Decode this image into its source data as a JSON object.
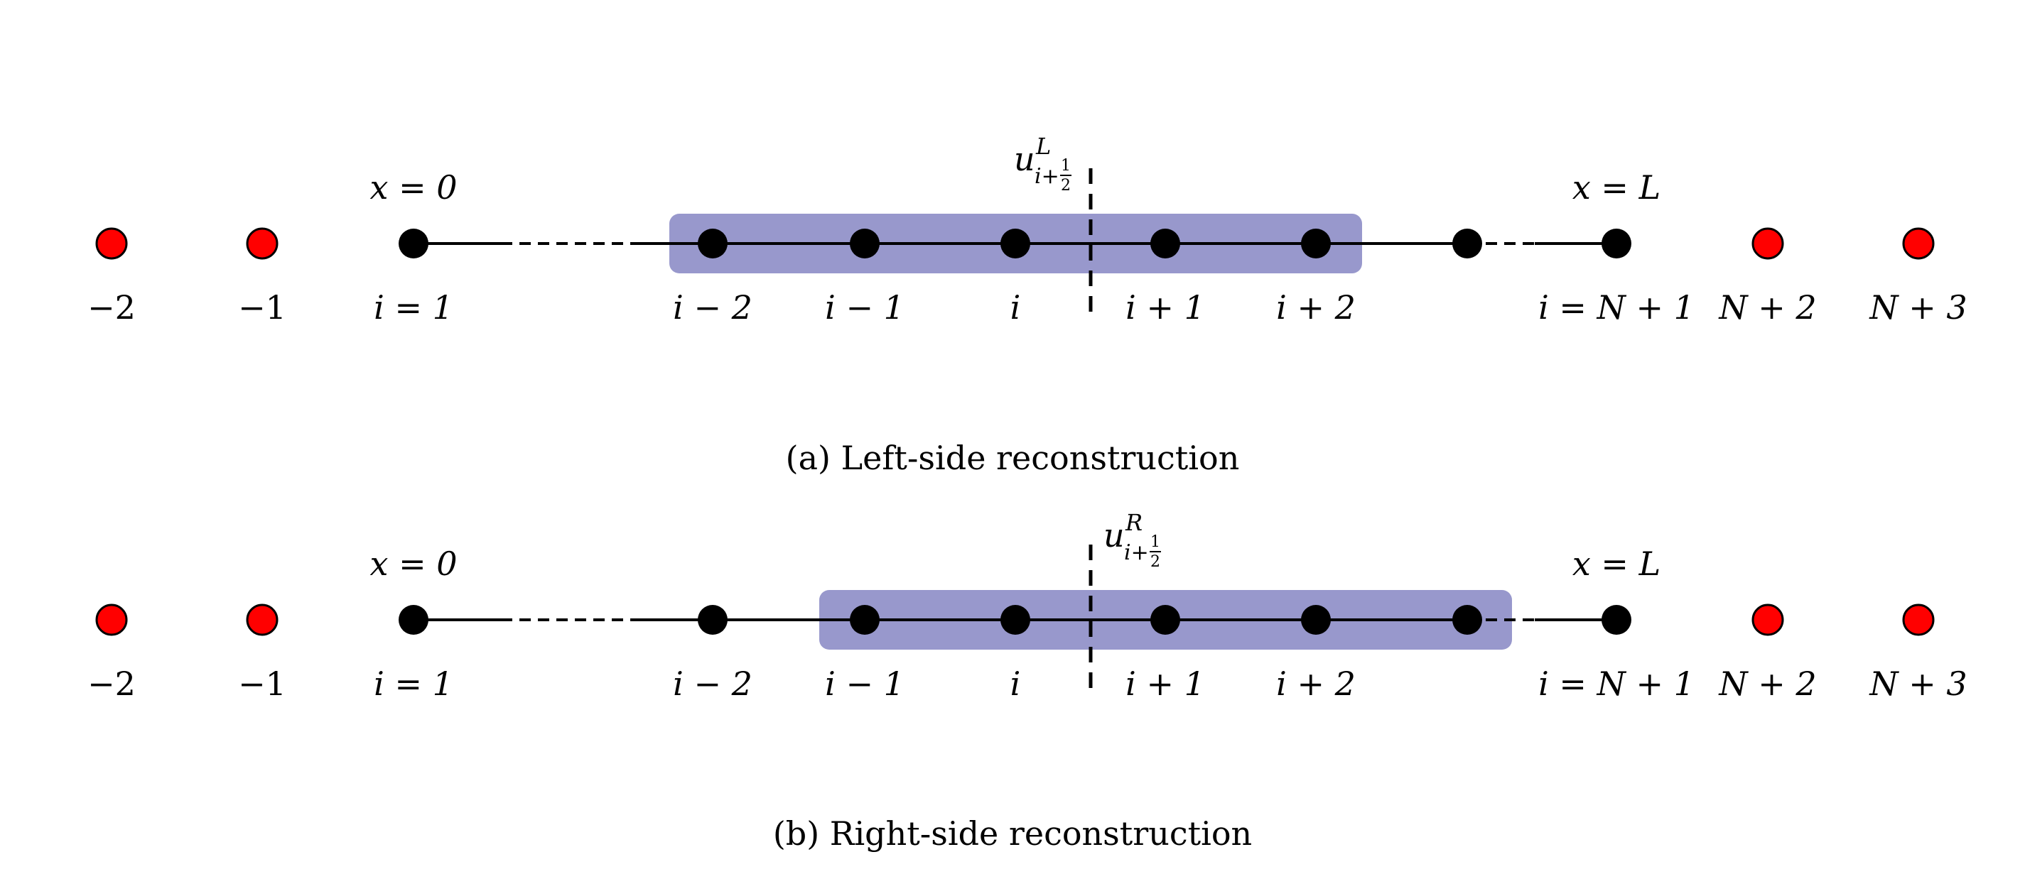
{
  "colors": {
    "stencil_band": "#9898cc",
    "ghost_point": "#ff0000",
    "interior_point": "#000000",
    "line": "#000000"
  },
  "panels": [
    {
      "id": "a",
      "caption": "(a) Left-side reconstruction",
      "interface_label": {
        "base": "u",
        "sup": "L",
        "sub_prefix": "i+",
        "frac_num": "1",
        "frac_den": "2"
      },
      "boundary_left": "x = 0",
      "boundary_right": "x = L",
      "node_labels": [
        "−2",
        "−1",
        "i = 1",
        "i − 2",
        "i − 1",
        "i",
        "i + 1",
        "i + 2",
        "i = N + 1",
        "N + 2",
        "N + 3"
      ]
    },
    {
      "id": "b",
      "caption": "(b) Right-side reconstruction",
      "interface_label": {
        "base": "u",
        "sup": "R",
        "sub_prefix": "i+",
        "frac_num": "1",
        "frac_den": "2"
      },
      "boundary_left": "x = 0",
      "boundary_right": "x = L",
      "node_labels": [
        "−2",
        "−1",
        "i = 1",
        "i − 2",
        "i − 1",
        "i",
        "i + 1",
        "i + 2",
        "i = N + 1",
        "N + 2",
        "N + 3"
      ]
    }
  ]
}
